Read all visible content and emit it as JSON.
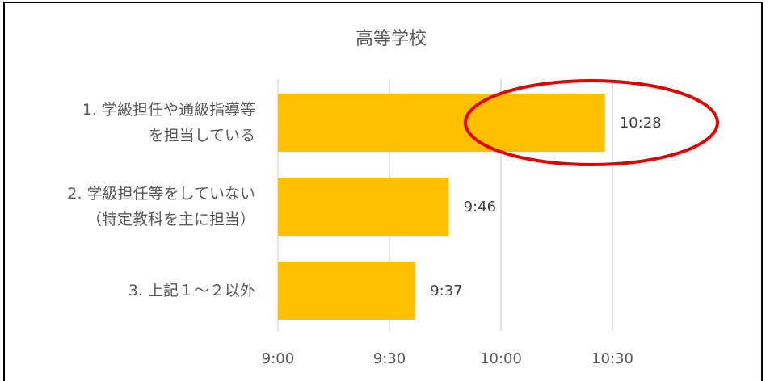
{
  "chart_data": {
    "type": "bar",
    "orientation": "horizontal",
    "title": "高等学校",
    "categories": [
      [
        "1. 学級担任や通級指導等",
        "を担当している"
      ],
      [
        "2. 学級担任等をしていない",
        "（特定教科を主に担当）"
      ],
      [
        "3. 上記１～２以外"
      ]
    ],
    "values_minutes": [
      628,
      586,
      577
    ],
    "value_labels": [
      "10:28",
      "9:46",
      "9:37"
    ],
    "x_ticks_minutes": [
      540,
      570,
      600,
      630
    ],
    "x_tick_labels": [
      "9:00",
      "9:30",
      "10:00",
      "10:30"
    ],
    "xlim_minutes": [
      540,
      630
    ],
    "grid": "vertical",
    "legend": "none",
    "colors": {
      "bar": "#FFC000",
      "highlight": "#E00000",
      "grid": "#D9D9D9",
      "text": "#595959"
    },
    "annotation": {
      "type": "ellipse-highlight",
      "target_category_index": 0
    }
  }
}
